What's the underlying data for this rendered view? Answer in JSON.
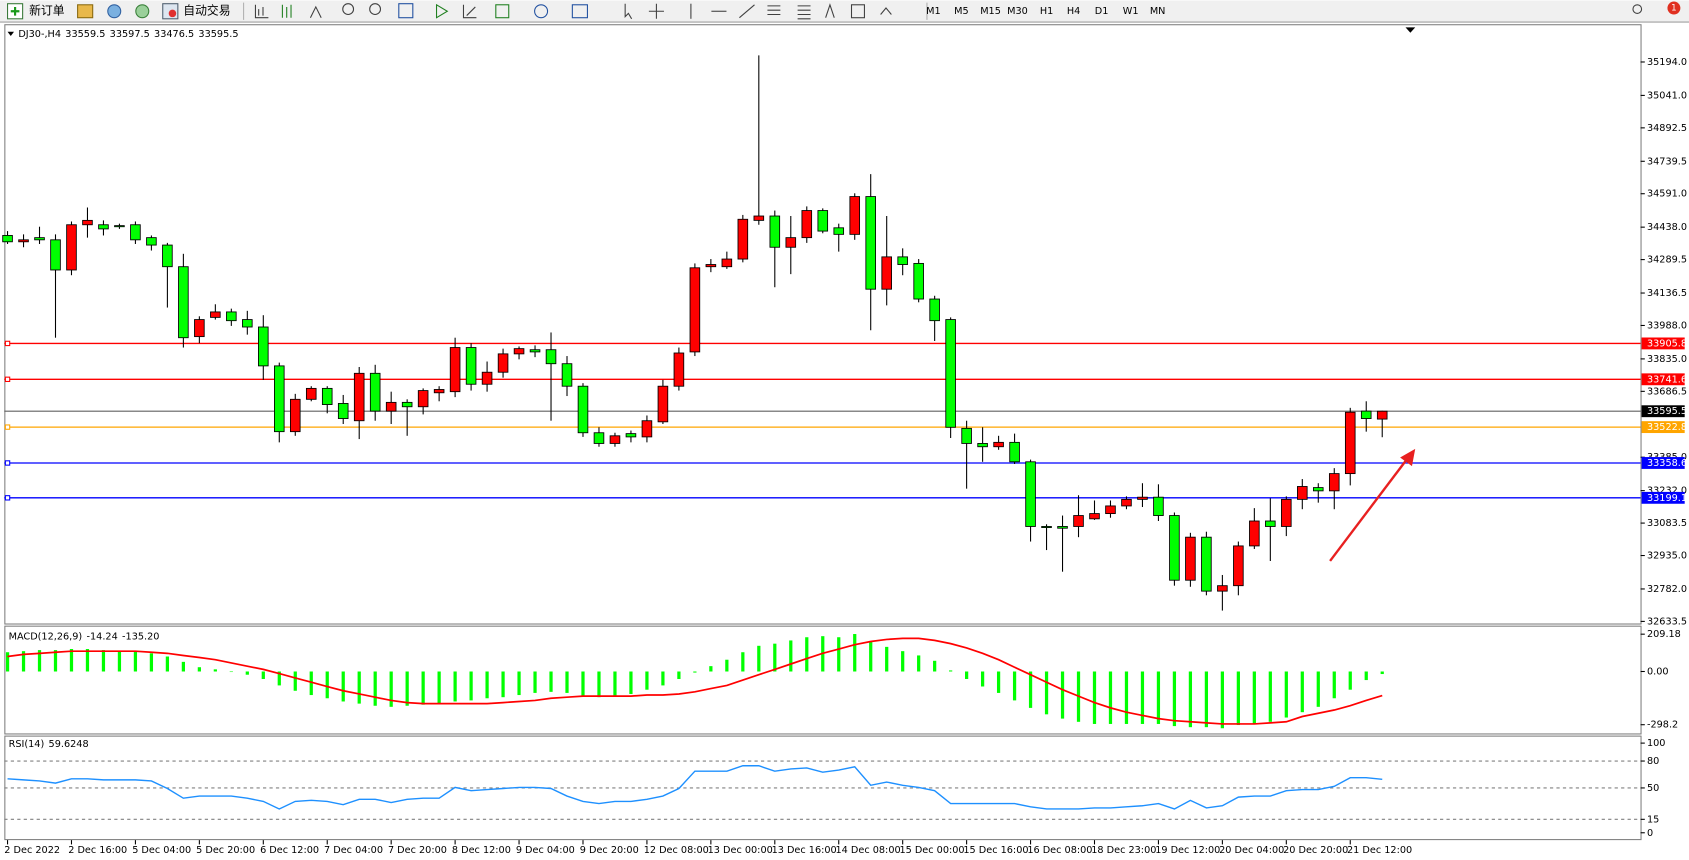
{
  "toolbar": {
    "new_order": "新订单",
    "auto_trading": "自动交易",
    "timeframes": [
      "M1",
      "M5",
      "M15",
      "M30",
      "H1",
      "H4",
      "D1",
      "W1",
      "MN"
    ],
    "notifications": "1"
  },
  "chart_data": [
    {
      "type": "candlestick",
      "title": "DJ30-,H4",
      "categories": [
        "2 Dec 2022",
        null,
        null,
        null,
        "2 Dec 16:00",
        null,
        null,
        null,
        "5 Dec 04:00",
        null,
        null,
        null,
        "5 Dec 20:00",
        null,
        null,
        null,
        "6 Dec 12:00",
        null,
        null,
        null,
        "7 Dec 04:00",
        null,
        null,
        null,
        "7 Dec 20:00",
        null,
        null,
        null,
        "8 Dec 12:00",
        null,
        null,
        null,
        "9 Dec 04:00",
        null,
        null,
        null,
        "9 Dec 20:00",
        null,
        null,
        null,
        "12 Dec 08:00",
        null,
        null,
        null,
        "13 Dec 00:00",
        null,
        null,
        null,
        "13 Dec 16:00",
        null,
        null,
        null,
        "14 Dec 08:00",
        null,
        null,
        null,
        "15 Dec 00:00",
        null,
        null,
        null,
        "15 Dec 16:00",
        null,
        null,
        null,
        "16 Dec 08:00",
        null,
        null,
        null,
        "18 Dec 23:00",
        null,
        null,
        null,
        "19 Dec 12:00",
        null,
        null,
        null,
        "20 Dec 04:00",
        null,
        null,
        null,
        "20 Dec 20:00",
        null,
        null,
        null,
        "21 Dec 12:00",
        null,
        null
      ],
      "open": [
        34400,
        34371,
        34390,
        34380,
        34242,
        34449,
        34449,
        34445,
        34449,
        34390,
        34356,
        34257,
        33937,
        34025,
        34050,
        34015,
        33981,
        33803,
        33502,
        33650,
        33700,
        33631,
        33552,
        33769,
        33596,
        33636,
        33616,
        33680,
        33685,
        33887,
        33719,
        33774,
        33858,
        33877,
        33877,
        33813,
        33710,
        33497,
        33448,
        33493,
        33478,
        33547,
        33710,
        33867,
        34257,
        34257,
        34292,
        34469,
        34489,
        34346,
        34390,
        34514,
        34435,
        34405,
        34578,
        34154,
        34302,
        34272,
        34109,
        34015,
        33517,
        33448,
        33433,
        33453,
        33364,
        33068,
        33068,
        33068,
        33103,
        33127,
        33162,
        33192,
        33202,
        33118,
        32822,
        33019,
        32772,
        32797,
        32979,
        33093,
        33068,
        33192,
        33246,
        33231,
        33310,
        33596,
        33559.5
      ],
      "high": [
        34420,
        34405,
        34440,
        34405,
        34464,
        34528,
        34469,
        34454,
        34464,
        34400,
        34366,
        34316,
        34030,
        34085,
        34065,
        34055,
        34035,
        33818,
        33675,
        33710,
        33710,
        33670,
        33798,
        33808,
        33685,
        33650,
        33700,
        33710,
        33932,
        33907,
        33823,
        33882,
        33892,
        33897,
        33956,
        33848,
        33724,
        33522,
        33497,
        33507,
        33576,
        33739,
        33887,
        34272,
        34292,
        34326,
        34494,
        35224,
        34514,
        34489,
        34533,
        34524,
        34454,
        34593,
        34681,
        34489,
        34341,
        34292,
        34124,
        34025,
        33552,
        33522,
        33483,
        33493,
        33374,
        33078,
        33118,
        33211,
        33187,
        33187,
        33206,
        33266,
        33261,
        33132,
        33039,
        33044,
        32846,
        32999,
        33152,
        33197,
        33206,
        33285,
        33266,
        33335,
        33611,
        33641,
        33597.5
      ],
      "low": [
        34361,
        34346,
        34361,
        33932,
        34218,
        34390,
        34400,
        34430,
        34361,
        34331,
        34070,
        33887,
        33907,
        34015,
        33986,
        33946,
        33739,
        33453,
        33483,
        33641,
        33586,
        33537,
        33468,
        33552,
        33537,
        33483,
        33581,
        33641,
        33660,
        33690,
        33685,
        33749,
        33833,
        33843,
        33552,
        33665,
        33478,
        33433,
        33433,
        33453,
        33453,
        33537,
        33690,
        33848,
        34232,
        34247,
        34277,
        34449,
        34163,
        34223,
        34366,
        34410,
        34326,
        34380,
        33966,
        34080,
        34218,
        34094,
        33917,
        33473,
        33241,
        33364,
        33419,
        33354,
        32999,
        32960,
        32861,
        33019,
        33098,
        33108,
        33147,
        33157,
        33093,
        32797,
        32792,
        32753,
        32683,
        32753,
        32965,
        32910,
        33024,
        33147,
        33177,
        33147,
        33256,
        33502,
        33476.5
      ],
      "close": [
        34371,
        34380,
        34380,
        34242,
        34449,
        34469,
        34430,
        34440,
        34380,
        34356,
        34257,
        33932,
        34015,
        34050,
        34010,
        33981,
        33803,
        33502,
        33650,
        33700,
        33626,
        33562,
        33769,
        33596,
        33636,
        33616,
        33690,
        33695,
        33887,
        33719,
        33774,
        33858,
        33882,
        33867,
        33813,
        33710,
        33497,
        33448,
        33483,
        33478,
        33552,
        33710,
        33862,
        34252,
        34267,
        34292,
        34474,
        34489,
        34346,
        34390,
        34514,
        34420,
        34405,
        34578,
        34154,
        34302,
        34267,
        34109,
        34010,
        33522,
        33448,
        33433,
        33453,
        33364,
        33068,
        33063,
        33060,
        33118,
        33127,
        33162,
        33192,
        33202,
        33118,
        32822,
        33019,
        32772,
        32797,
        32979,
        33093,
        33068,
        33192,
        33251,
        33231,
        33310,
        33591,
        33562,
        33595.5
      ],
      "up_color": "#ff0000",
      "down_color": "#00ff00",
      "last_price_color": "#000000",
      "ylim": [
        32624,
        35367
      ],
      "yticks": [
        {
          "value": 35194,
          "label": "35194.0"
        },
        {
          "value": 35041,
          "label": "35041.0"
        },
        34892.5,
        34739.5,
        {
          "value": 34591,
          "label": "34591.0"
        },
        {
          "value": 34438,
          "label": "34438.0"
        },
        34289.5,
        34136.5,
        {
          "value": 33988,
          "label": "33988.0"
        },
        {
          "value": 33835,
          "label": "33835.0"
        },
        33686.5,
        {
          "value": 33385,
          "label": "33385.0"
        },
        {
          "value": 33232,
          "label": "33232.0"
        },
        33083.5,
        {
          "value": 32935,
          "label": "32935.0"
        },
        {
          "value": 32782,
          "label": "32782.0"
        },
        32633.5
      ],
      "hlines": [
        {
          "value": 33905.8,
          "color": "#ff0000"
        },
        {
          "value": 33741.6,
          "color": "#ff0000"
        },
        {
          "value": 33522.8,
          "color": "#ffa500"
        },
        {
          "value": 33358.6,
          "color": "#0000ff"
        },
        {
          "value": 33199.1,
          "color": "#0000ff"
        }
      ]
    },
    {
      "type": "macd",
      "title": "MACD(12,26,9)",
      "series": [
        {
          "type": "histogram",
          "color": "#00ff00",
          "values": [
            108,
            114,
            120,
            120,
            126,
            126,
            120,
            114,
            114,
            102,
            84,
            54,
            24,
            12,
            0,
            -18,
            -42,
            -78,
            -108,
            -132,
            -150,
            -168,
            -180,
            -192,
            -198,
            -192,
            -186,
            -180,
            -168,
            -162,
            -150,
            -144,
            -132,
            -120,
            -114,
            -120,
            -138,
            -144,
            -138,
            -126,
            -102,
            -78,
            -42,
            -6,
            30,
            66,
            108,
            144,
            156,
            174,
            192,
            198,
            192,
            210,
            168,
            138,
            114,
            90,
            60,
            6,
            -42,
            -84,
            -120,
            -162,
            -204,
            -240,
            -264,
            -282,
            -294,
            -294,
            -294,
            -294,
            -294,
            -306,
            -312,
            -312,
            -318,
            -300,
            -294,
            -282,
            -258,
            -228,
            -198,
            -150,
            -102,
            -48,
            -14.24
          ]
        },
        {
          "type": "line",
          "color": "#ff0000",
          "values": [
            84,
            96,
            102,
            108,
            114,
            114,
            114,
            114,
            114,
            108,
            102,
            90,
            78,
            66,
            48,
            30,
            12,
            -12,
            -36,
            -60,
            -84,
            -108,
            -126,
            -144,
            -162,
            -174,
            -180,
            -180,
            -180,
            -180,
            -180,
            -174,
            -168,
            -162,
            -150,
            -144,
            -138,
            -138,
            -138,
            -138,
            -132,
            -132,
            -126,
            -114,
            -96,
            -78,
            -48,
            -18,
            12,
            42,
            72,
            102,
            126,
            150,
            168,
            180,
            186,
            186,
            174,
            156,
            132,
            102,
            66,
            24,
            -18,
            -60,
            -102,
            -138,
            -174,
            -204,
            -228,
            -246,
            -264,
            -276,
            -282,
            -288,
            -294,
            -294,
            -294,
            -288,
            -282,
            -252,
            -234,
            -216,
            -192,
            -162,
            {
              "value": -135.2,
              "label": "-135.20"
            }
          ]
        }
      ],
      "ylim": [
        -347,
        251
      ],
      "yticks": [
        209.18,
        {
          "value": 0,
          "label": "0.00"
        },
        -298.2
      ]
    },
    {
      "type": "rsi",
      "title": "RSI(14)",
      "series": [
        {
          "color": "#1e90ff",
          "values": [
            60.2,
            59.0,
            57.8,
            55.4,
            60.2,
            60.2,
            59.0,
            59.0,
            59.0,
            57.8,
            49.4,
            38.6,
            41.0,
            41.0,
            41.0,
            38.6,
            34.9,
            26.5,
            35.0,
            36.1,
            34.9,
            31.3,
            37.3,
            37.3,
            33.7,
            37.3,
            38.6,
            38.6,
            50.6,
            47.0,
            48.2,
            49.4,
            50.6,
            50.6,
            49.4,
            41.0,
            34.9,
            32.5,
            34.9,
            34.9,
            37.3,
            41.0,
            49.4,
            68.7,
            68.7,
            68.7,
            74.7,
            74.7,
            68.7,
            71.1,
            72.3,
            67.5,
            69.9,
            73.5,
            53.0,
            56.6,
            53.0,
            50.6,
            47.0,
            32.5,
            32.5,
            32.5,
            32.5,
            32.5,
            28.9,
            26.5,
            26.5,
            26.5,
            27.7,
            27.7,
            28.9,
            30.1,
            32.5,
            26.5,
            36.1,
            27.7,
            30.1,
            39.8,
            41.0,
            41.0,
            47.0,
            48.2,
            48.2,
            51.8,
            61.4,
            61.4,
            59.6248
          ]
        }
      ],
      "ylim": [
        -7,
        106
      ],
      "yticks": [
        100,
        80,
        50,
        15,
        0
      ],
      "levels": [
        80,
        50,
        15
      ]
    }
  ]
}
